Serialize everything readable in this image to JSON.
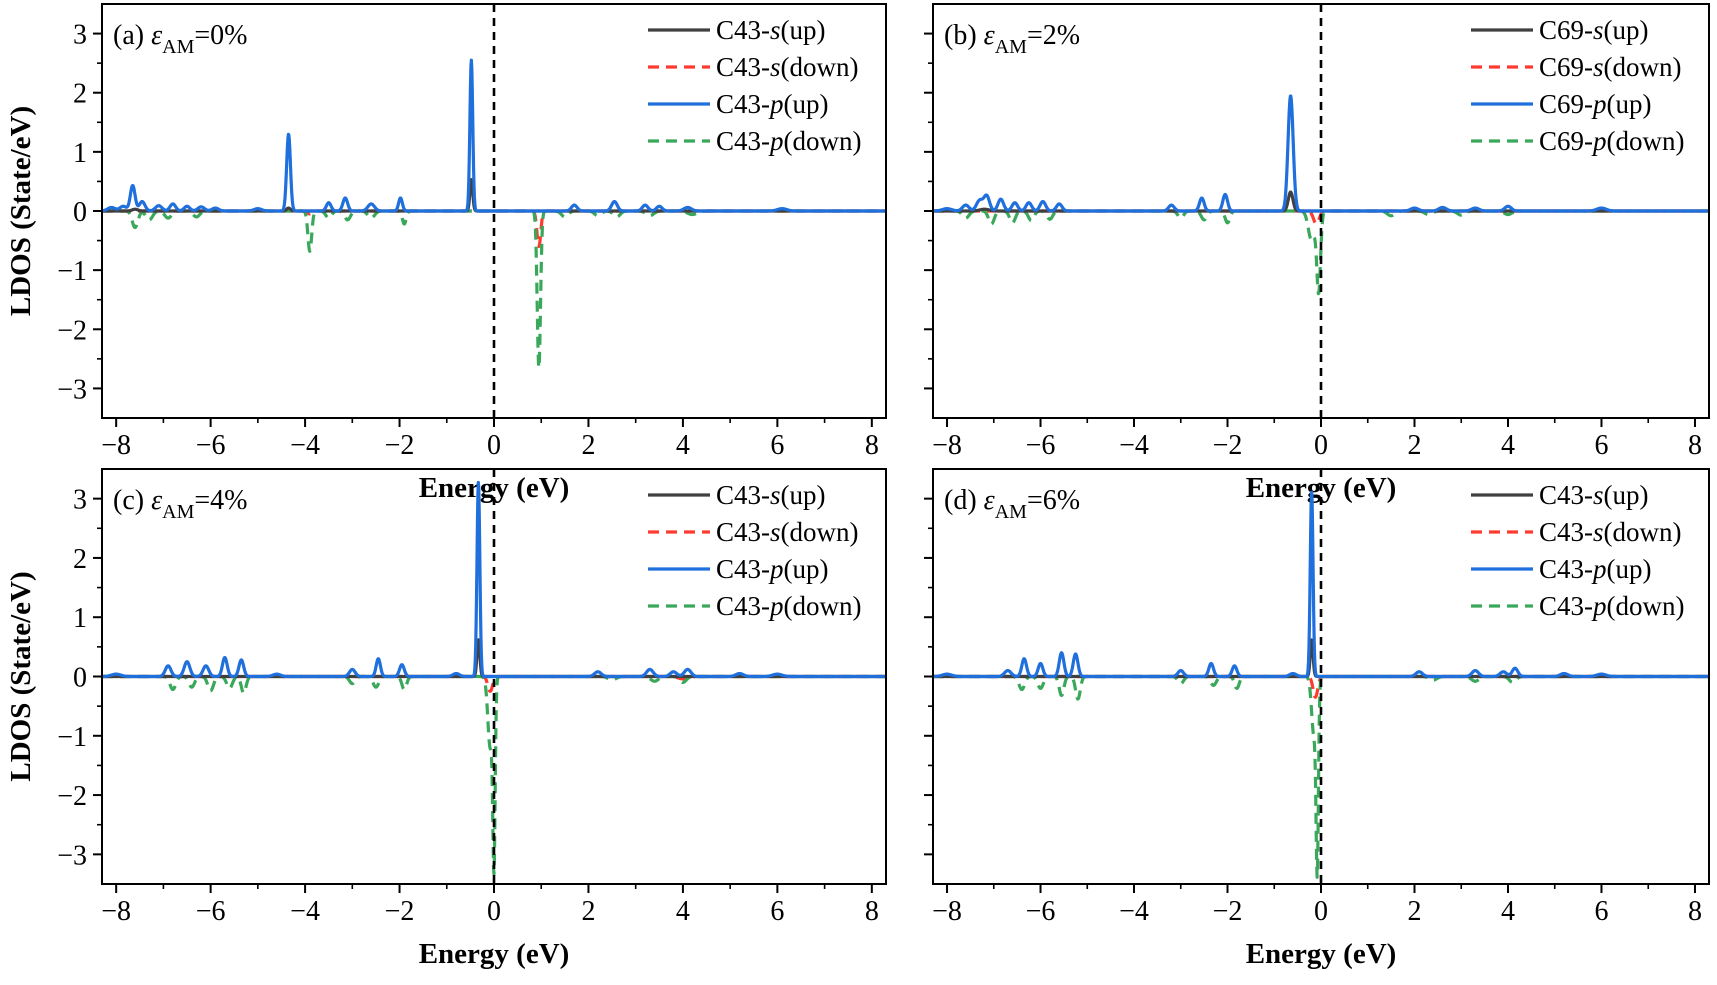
{
  "figure": {
    "xlabel": "Energy (eV)",
    "ylabel": "LDOS (State/eV)",
    "xticks": [
      -8,
      -6,
      -4,
      -2,
      0,
      2,
      4,
      6,
      8
    ],
    "yticks": [
      -3,
      -2,
      -1,
      0,
      1,
      2,
      3
    ],
    "xlim": [
      -8.3,
      8.3
    ],
    "ylim": [
      -3.5,
      3.5
    ],
    "fermi_level": 0,
    "colors": {
      "s_up": "#404040",
      "s_down": "#ff3b30",
      "p_up": "#1f6fdc",
      "p_down": "#3aa85a"
    },
    "legend_position": "top-right"
  },
  "chart_data": [
    {
      "type": "line",
      "panel_label_prefix": "(a) ",
      "strain_symbol": "ε",
      "strain_subscript": "AM",
      "strain_value": "=0%",
      "legend": [
        {
          "atom": "C43-",
          "orb": "s",
          "spin": "(up)"
        },
        {
          "atom": "C43-",
          "orb": "s",
          "spin": "(down)"
        },
        {
          "atom": "C43-",
          "orb": "p",
          "spin": "(up)"
        },
        {
          "atom": "C43-",
          "orb": "p",
          "spin": "(down)"
        }
      ],
      "series": [
        {
          "name": "C43-s(up)",
          "peaks": [
            [
              -0.48,
              0.53,
              0.03
            ],
            [
              -4.35,
              0.05,
              0.04
            ],
            [
              -7.6,
              0.03,
              0.06
            ]
          ]
        },
        {
          "name": "C43-s(down)",
          "peaks": [
            [
              0.95,
              -0.6,
              0.04
            ],
            [
              -3.9,
              -0.05,
              0.05
            ]
          ]
        },
        {
          "name": "C43-p(up)",
          "peaks": [
            [
              -8.1,
              0.06,
              0.08
            ],
            [
              -7.85,
              0.08,
              0.07
            ],
            [
              -7.65,
              0.43,
              0.05
            ],
            [
              -7.45,
              0.16,
              0.06
            ],
            [
              -7.1,
              0.09,
              0.07
            ],
            [
              -6.8,
              0.12,
              0.06
            ],
            [
              -6.5,
              0.08,
              0.06
            ],
            [
              -6.2,
              0.07,
              0.07
            ],
            [
              -5.9,
              0.05,
              0.07
            ],
            [
              -5.0,
              0.04,
              0.08
            ],
            [
              -4.35,
              1.3,
              0.04
            ],
            [
              -3.5,
              0.14,
              0.05
            ],
            [
              -3.15,
              0.22,
              0.05
            ],
            [
              -2.6,
              0.12,
              0.07
            ],
            [
              -1.98,
              0.22,
              0.04
            ],
            [
              -0.48,
              2.55,
              0.03
            ],
            [
              1.7,
              0.1,
              0.06
            ],
            [
              2.55,
              0.16,
              0.06
            ],
            [
              3.2,
              0.1,
              0.06
            ],
            [
              3.5,
              0.08,
              0.06
            ],
            [
              4.1,
              0.06,
              0.08
            ],
            [
              6.1,
              0.04,
              0.1
            ]
          ]
        },
        {
          "name": "C43-p(down)",
          "peaks": [
            [
              -7.6,
              -0.28,
              0.06
            ],
            [
              -7.3,
              -0.15,
              0.07
            ],
            [
              -6.9,
              -0.12,
              0.07
            ],
            [
              -6.3,
              -0.1,
              0.07
            ],
            [
              -3.9,
              -0.68,
              0.04
            ],
            [
              -3.5,
              -0.12,
              0.06
            ],
            [
              -3.1,
              -0.15,
              0.06
            ],
            [
              -2.6,
              -0.12,
              0.07
            ],
            [
              -1.9,
              -0.22,
              0.04
            ],
            [
              0.95,
              -2.65,
              0.035
            ],
            [
              1.5,
              -0.1,
              0.07
            ],
            [
              2.2,
              -0.08,
              0.07
            ],
            [
              2.6,
              -0.1,
              0.07
            ],
            [
              3.3,
              -0.08,
              0.08
            ],
            [
              4.2,
              -0.06,
              0.1
            ]
          ]
        }
      ]
    },
    {
      "type": "line",
      "panel_label_prefix": "(b) ",
      "strain_symbol": "ε",
      "strain_subscript": "AM",
      "strain_value": "=2%",
      "legend": [
        {
          "atom": "C69-",
          "orb": "s",
          "spin": "(up)"
        },
        {
          "atom": "C69-",
          "orb": "s",
          "spin": "(down)"
        },
        {
          "atom": "C69-",
          "orb": "p",
          "spin": "(up)"
        },
        {
          "atom": "C69-",
          "orb": "p",
          "spin": "(down)"
        }
      ],
      "series": [
        {
          "name": "C69-s(up)",
          "peaks": [
            [
              -0.65,
              0.32,
              0.05
            ],
            [
              -7.2,
              0.03,
              0.1
            ]
          ]
        },
        {
          "name": "C69-s(down)",
          "peaks": [
            [
              -0.1,
              -0.22,
              0.06
            ]
          ]
        },
        {
          "name": "C69-p(up)",
          "peaks": [
            [
              -8.0,
              0.04,
              0.1
            ],
            [
              -7.6,
              0.1,
              0.07
            ],
            [
              -7.3,
              0.18,
              0.07
            ],
            [
              -7.15,
              0.25,
              0.06
            ],
            [
              -6.85,
              0.2,
              0.06
            ],
            [
              -6.55,
              0.14,
              0.06
            ],
            [
              -6.25,
              0.14,
              0.06
            ],
            [
              -5.95,
              0.16,
              0.06
            ],
            [
              -5.6,
              0.12,
              0.06
            ],
            [
              -3.2,
              0.1,
              0.06
            ],
            [
              -2.55,
              0.22,
              0.05
            ],
            [
              -2.05,
              0.28,
              0.05
            ],
            [
              -0.65,
              1.95,
              0.055
            ],
            [
              2.0,
              0.05,
              0.08
            ],
            [
              2.6,
              0.06,
              0.08
            ],
            [
              3.3,
              0.05,
              0.08
            ],
            [
              4.0,
              0.08,
              0.07
            ],
            [
              6.0,
              0.05,
              0.1
            ]
          ]
        },
        {
          "name": "C69-p(down)",
          "peaks": [
            [
              -7.6,
              -0.12,
              0.07
            ],
            [
              -7.05,
              -0.22,
              0.06
            ],
            [
              -6.6,
              -0.2,
              0.06
            ],
            [
              -6.2,
              -0.16,
              0.06
            ],
            [
              -5.8,
              -0.14,
              0.06
            ],
            [
              -3.0,
              -0.12,
              0.06
            ],
            [
              -2.5,
              -0.15,
              0.06
            ],
            [
              -2.0,
              -0.2,
              0.05
            ],
            [
              -0.2,
              -0.5,
              0.07
            ],
            [
              -0.05,
              -1.35,
              0.04
            ],
            [
              1.5,
              -0.08,
              0.08
            ],
            [
              2.3,
              -0.06,
              0.08
            ],
            [
              3.0,
              -0.07,
              0.08
            ],
            [
              4.0,
              -0.06,
              0.08
            ]
          ]
        }
      ]
    },
    {
      "type": "line",
      "panel_label_prefix": "(c) ",
      "strain_symbol": "ε",
      "strain_subscript": "AM",
      "strain_value": "=4%",
      "legend": [
        {
          "atom": "C43-",
          "orb": "s",
          "spin": "(up)"
        },
        {
          "atom": "C43-",
          "orb": "s",
          "spin": "(down)"
        },
        {
          "atom": "C43-",
          "orb": "p",
          "spin": "(up)"
        },
        {
          "atom": "C43-",
          "orb": "p",
          "spin": "(down)"
        }
      ],
      "series": [
        {
          "name": "C43-s(up)",
          "peaks": [
            [
              -0.33,
              0.62,
              0.03
            ]
          ]
        },
        {
          "name": "C43-s(down)",
          "peaks": [
            [
              -0.08,
              -0.25,
              0.05
            ],
            [
              4.0,
              -0.04,
              0.1
            ]
          ]
        },
        {
          "name": "C43-p(up)",
          "peaks": [
            [
              -8.0,
              0.04,
              0.1
            ],
            [
              -6.9,
              0.18,
              0.06
            ],
            [
              -6.5,
              0.25,
              0.06
            ],
            [
              -6.1,
              0.18,
              0.06
            ],
            [
              -5.7,
              0.32,
              0.05
            ],
            [
              -5.35,
              0.28,
              0.05
            ],
            [
              -4.6,
              0.04,
              0.08
            ],
            [
              -3.0,
              0.12,
              0.06
            ],
            [
              -2.45,
              0.3,
              0.045
            ],
            [
              -1.95,
              0.2,
              0.05
            ],
            [
              -0.8,
              0.05,
              0.07
            ],
            [
              -0.33,
              3.28,
              0.03
            ],
            [
              2.2,
              0.08,
              0.07
            ],
            [
              3.3,
              0.12,
              0.07
            ],
            [
              3.8,
              0.08,
              0.07
            ],
            [
              4.1,
              0.12,
              0.07
            ],
            [
              5.2,
              0.05,
              0.08
            ],
            [
              6.0,
              0.04,
              0.1
            ]
          ]
        },
        {
          "name": "C43-p(down)",
          "peaks": [
            [
              -6.8,
              -0.22,
              0.06
            ],
            [
              -6.4,
              -0.18,
              0.06
            ],
            [
              -6.0,
              -0.24,
              0.06
            ],
            [
              -5.6,
              -0.2,
              0.06
            ],
            [
              -5.3,
              -0.28,
              0.05
            ],
            [
              -3.0,
              -0.12,
              0.06
            ],
            [
              -2.5,
              -0.18,
              0.06
            ],
            [
              -1.9,
              -0.22,
              0.05
            ],
            [
              -0.08,
              -1.2,
              0.05
            ],
            [
              0.0,
              -3.0,
              0.025
            ],
            [
              2.5,
              -0.06,
              0.08
            ],
            [
              3.4,
              -0.08,
              0.08
            ],
            [
              4.0,
              -0.1,
              0.07
            ]
          ]
        }
      ]
    },
    {
      "type": "line",
      "panel_label_prefix": "(d) ",
      "strain_symbol": "ε",
      "strain_subscript": "AM",
      "strain_value": "=6%",
      "legend": [
        {
          "atom": "C43-",
          "orb": "s",
          "spin": "(up)"
        },
        {
          "atom": "C43-",
          "orb": "s",
          "spin": "(down)"
        },
        {
          "atom": "C43-",
          "orb": "p",
          "spin": "(up)"
        },
        {
          "atom": "C43-",
          "orb": "p",
          "spin": "(down)"
        }
      ],
      "series": [
        {
          "name": "C43-s(up)",
          "peaks": [
            [
              -0.2,
              0.62,
              0.03
            ]
          ]
        },
        {
          "name": "C43-s(down)",
          "peaks": [
            [
              -0.12,
              -0.35,
              0.05
            ]
          ]
        },
        {
          "name": "C43-p(up)",
          "peaks": [
            [
              -8.0,
              0.04,
              0.1
            ],
            [
              -6.7,
              0.1,
              0.07
            ],
            [
              -6.35,
              0.3,
              0.05
            ],
            [
              -6.0,
              0.22,
              0.05
            ],
            [
              -5.55,
              0.4,
              0.05
            ],
            [
              -5.25,
              0.38,
              0.05
            ],
            [
              -3.0,
              0.1,
              0.06
            ],
            [
              -2.35,
              0.22,
              0.05
            ],
            [
              -1.85,
              0.18,
              0.05
            ],
            [
              -0.6,
              0.05,
              0.07
            ],
            [
              -0.2,
              3.12,
              0.03
            ],
            [
              2.1,
              0.08,
              0.07
            ],
            [
              3.3,
              0.1,
              0.07
            ],
            [
              3.9,
              0.08,
              0.07
            ],
            [
              4.15,
              0.14,
              0.06
            ],
            [
              5.2,
              0.05,
              0.08
            ],
            [
              6.0,
              0.04,
              0.1
            ]
          ]
        },
        {
          "name": "C43-p(down)",
          "peaks": [
            [
              -6.4,
              -0.22,
              0.06
            ],
            [
              -6.0,
              -0.2,
              0.06
            ],
            [
              -5.55,
              -0.32,
              0.05
            ],
            [
              -5.2,
              -0.38,
              0.05
            ],
            [
              -3.0,
              -0.12,
              0.06
            ],
            [
              -2.3,
              -0.15,
              0.06
            ],
            [
              -1.8,
              -0.2,
              0.05
            ],
            [
              -0.15,
              -1.0,
              0.05
            ],
            [
              -0.08,
              -3.0,
              0.025
            ],
            [
              2.4,
              -0.06,
              0.08
            ],
            [
              3.3,
              -0.08,
              0.08
            ],
            [
              4.1,
              -0.1,
              0.07
            ]
          ]
        }
      ]
    }
  ]
}
